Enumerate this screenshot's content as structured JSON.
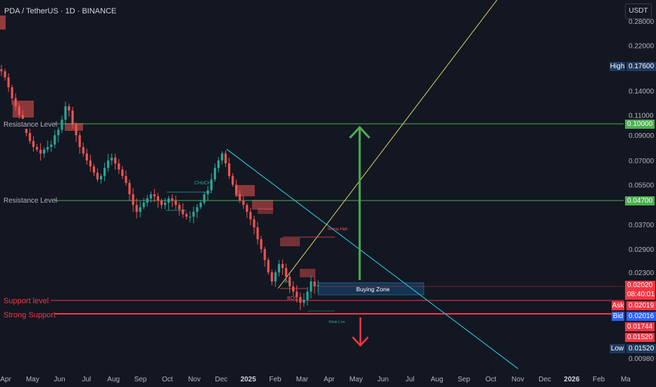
{
  "header": {
    "title": "PDA / TetherUS · 1D · BINANCE",
    "currency_button": "USDT"
  },
  "chart_data": {
    "type": "candlestick",
    "title": "PDA / TetherUS · 1D · BINANCE",
    "y_scale": "log",
    "y_ticks": [
      "0.28000",
      "0.22000",
      "0.14000",
      "0.11000",
      "0.09000",
      "0.07000",
      "0.05500",
      "0.03700",
      "0.02900",
      "0.02300",
      "0.00980"
    ],
    "x_ticks": [
      "Apr",
      "May",
      "Jun",
      "Jul",
      "Aug",
      "Sep",
      "Oct",
      "Nov",
      "Dec",
      "2025",
      "Feb",
      "Mar",
      "Apr",
      "May",
      "Jun",
      "Jul",
      "Aug",
      "Sep",
      "Oct",
      "Nov",
      "Dec",
      "2026",
      "Feb",
      "Ma"
    ],
    "price_tags": {
      "high_label": "High",
      "high_value": "0.17600",
      "resistance_1": "0.10000",
      "resistance_2": "0.04700",
      "last_price": "0.02020",
      "countdown": "08:40:01",
      "ask_label": "Ask",
      "ask_value": "0.02019",
      "bid_label": "Bid",
      "bid_value": "0.02016",
      "level_1": "0.01744",
      "level_2": "0.01520",
      "low_label": "Low",
      "low_value": "0.01520"
    },
    "annotations": {
      "resistance_upper": "Resistance Level",
      "resistance_lower": "Resistance Level",
      "support": "Support level",
      "strong_support": "Strong Support",
      "buying_zone": "Buying Zone",
      "choch": "CHoCH",
      "bos": "BOS",
      "ibos": "iBos",
      "strong_high": "Strong High",
      "weak_low": "Weak Low"
    },
    "levels": {
      "resistance_upper": 0.1,
      "resistance_lower": 0.047,
      "support": 0.01744,
      "strong_support": 0.0152
    },
    "series_close": [
      0.17,
      0.16,
      0.145,
      0.13,
      0.12,
      0.11,
      0.1,
      0.092,
      0.085,
      0.08,
      0.078,
      0.075,
      0.078,
      0.08,
      0.082,
      0.09,
      0.095,
      0.105,
      0.12,
      0.115,
      0.1,
      0.09,
      0.08,
      0.075,
      0.07,
      0.066,
      0.062,
      0.058,
      0.06,
      0.065,
      0.07,
      0.072,
      0.068,
      0.064,
      0.06,
      0.056,
      0.05,
      0.045,
      0.042,
      0.044,
      0.046,
      0.048,
      0.05,
      0.049,
      0.047,
      0.045,
      0.046,
      0.048,
      0.047,
      0.045,
      0.043,
      0.041,
      0.04,
      0.04,
      0.042,
      0.044,
      0.046,
      0.05,
      0.052,
      0.058,
      0.065,
      0.07,
      0.075,
      0.068,
      0.06,
      0.055,
      0.05,
      0.047,
      0.045,
      0.042,
      0.039,
      0.036,
      0.032,
      0.029,
      0.026,
      0.023,
      0.021,
      0.023,
      0.025,
      0.024,
      0.022,
      0.02,
      0.019,
      0.018,
      0.017,
      0.0175,
      0.019,
      0.021,
      0.02,
      0.0202
    ],
    "colors": {
      "up": "#26a69a",
      "down": "#ef5350",
      "resistance": "#4caf50",
      "support": "#f23645",
      "buy_zone": "#1e88e5"
    }
  }
}
